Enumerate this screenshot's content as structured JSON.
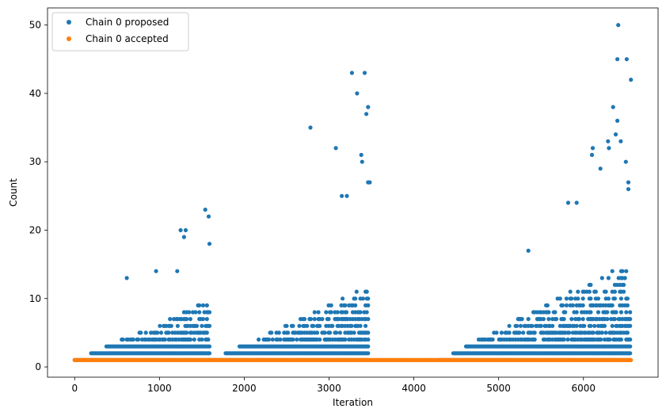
{
  "chart_data": {
    "type": "scatter",
    "xlabel": "Iteration",
    "ylabel": "Count",
    "xlim": [
      -320,
      6880
    ],
    "ylim": [
      -1.5,
      52.5
    ],
    "xticks": [
      0,
      1000,
      2000,
      3000,
      4000,
      5000,
      6000
    ],
    "yticks": [
      0,
      10,
      20,
      30,
      40,
      50
    ],
    "grid": false,
    "legend": "top-left",
    "series": [
      {
        "name": "Chain 0 proposed",
        "color": "#1f77b4",
        "segments": [
          {
            "x0": 0,
            "x1": 1600,
            "base": 1,
            "grow": 0.0055,
            "envelope": 15,
            "density": 0.9
          },
          {
            "x0": 1600,
            "x1": 3470,
            "base": 1,
            "grow": 0.0058,
            "envelope": 22,
            "density": 0.9
          },
          {
            "x0": 4300,
            "x1": 6560,
            "base": 1,
            "grow": 0.0065,
            "envelope": 23,
            "density": 0.85
          }
        ],
        "outliers": [
          [
            615,
            13
          ],
          [
            960,
            14
          ],
          [
            1210,
            14
          ],
          [
            1250,
            20
          ],
          [
            1290,
            19
          ],
          [
            1310,
            20
          ],
          [
            1540,
            23
          ],
          [
            1580,
            22
          ],
          [
            1590,
            18
          ],
          [
            2780,
            35
          ],
          [
            3080,
            32
          ],
          [
            3150,
            25
          ],
          [
            3210,
            25
          ],
          [
            3270,
            43
          ],
          [
            3330,
            40
          ],
          [
            3380,
            31
          ],
          [
            3390,
            30
          ],
          [
            3420,
            43
          ],
          [
            3440,
            37
          ],
          [
            3460,
            38
          ],
          [
            3460,
            27
          ],
          [
            3480,
            27
          ],
          [
            5350,
            17
          ],
          [
            5820,
            24
          ],
          [
            5920,
            24
          ],
          [
            6100,
            31
          ],
          [
            6110,
            32
          ],
          [
            6200,
            29
          ],
          [
            6290,
            33
          ],
          [
            6300,
            32
          ],
          [
            6350,
            38
          ],
          [
            6380,
            34
          ],
          [
            6400,
            36
          ],
          [
            6410,
            50
          ],
          [
            6400,
            45
          ],
          [
            6440,
            33
          ],
          [
            6500,
            30
          ],
          [
            6510,
            45
          ],
          [
            6530,
            27
          ],
          [
            6530,
            26
          ],
          [
            6560,
            42
          ]
        ]
      },
      {
        "name": "Chain 0 accepted",
        "color": "#ff7f0e",
        "x_range": [
          0,
          6560
        ],
        "value": 1
      }
    ]
  }
}
